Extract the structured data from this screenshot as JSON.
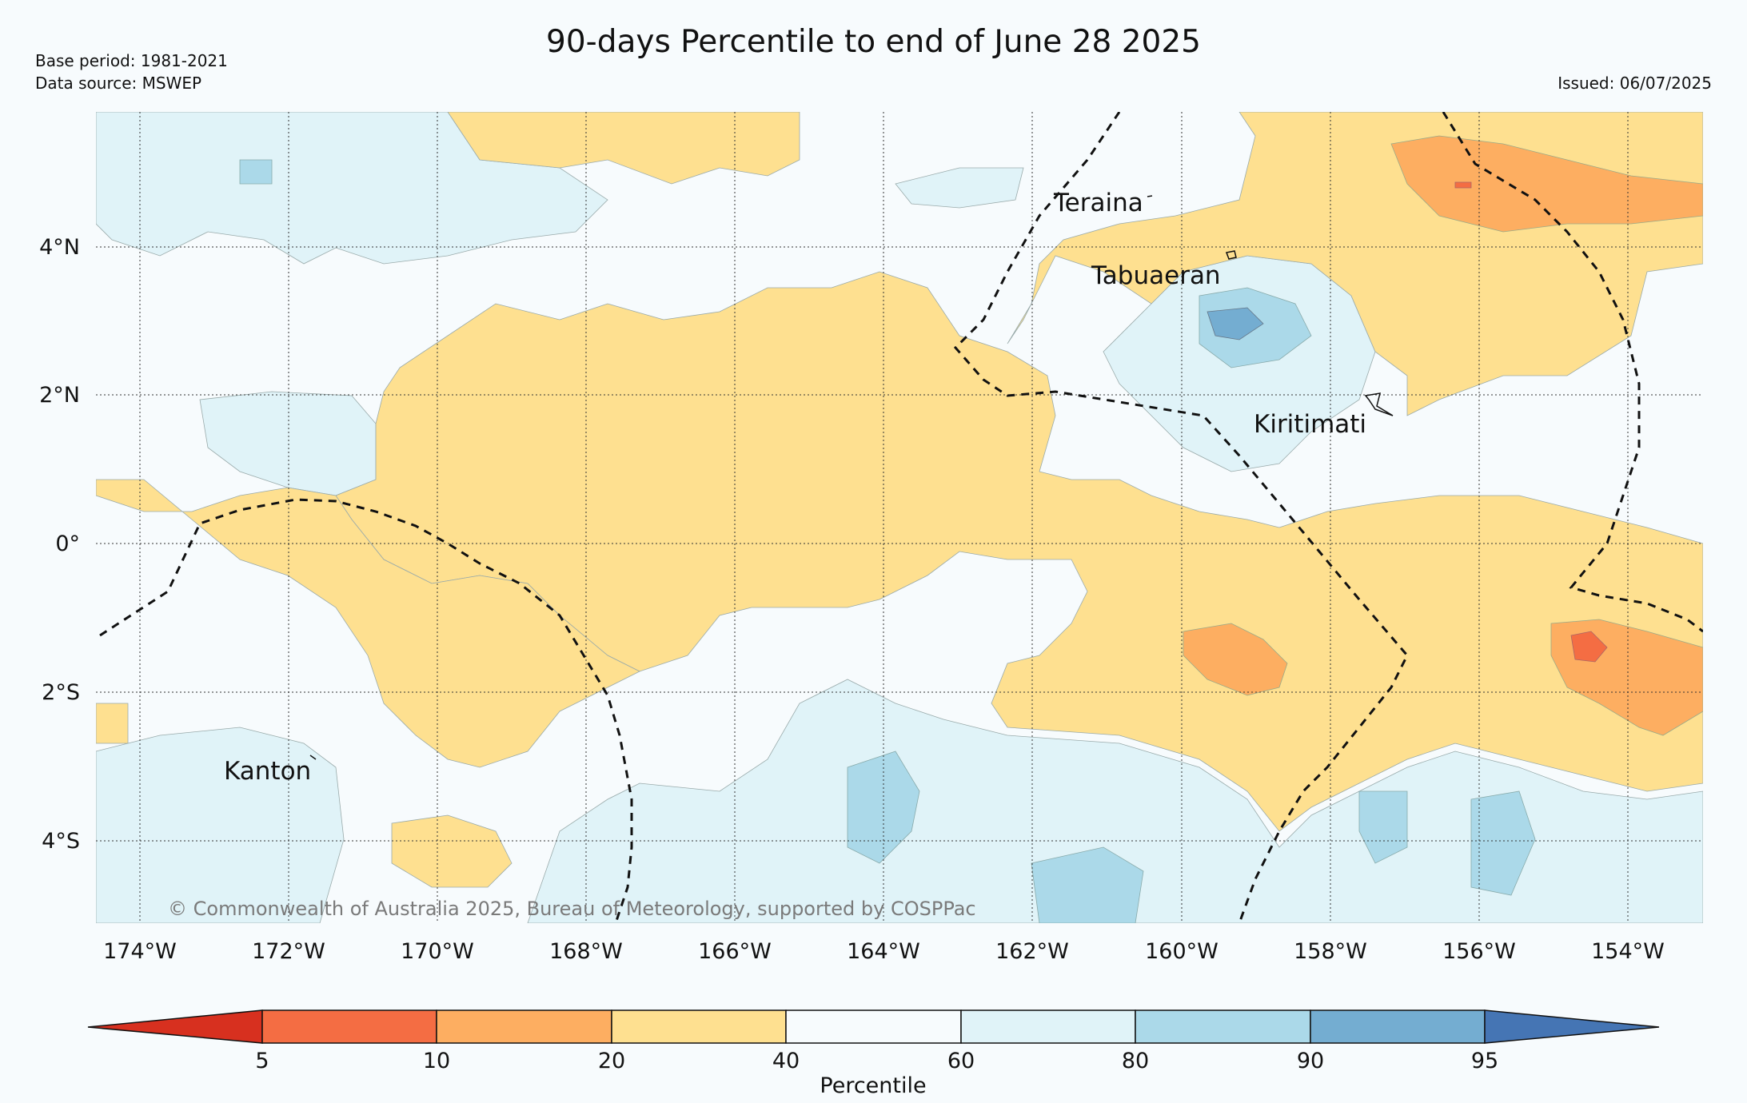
{
  "title": "90-days Percentile to end of June 28 2025",
  "base_period": "Base period: 1981-2021",
  "data_source": "Data source: MSWEP",
  "issued": "Issued: 06/07/2025",
  "copyright": "© Commonwealth of Australia 2025, Bureau of Meteorology, supported by COSPPac",
  "lat_ticks": [
    "4°N",
    "2°N",
    "0°",
    "2°S",
    "4°S"
  ],
  "lon_ticks": [
    "174°W",
    "172°W",
    "170°W",
    "168°W",
    "166°W",
    "164°W",
    "162°W",
    "160°W",
    "158°W",
    "156°W",
    "154°W"
  ],
  "places": [
    "Teraina",
    "Tabuaeran",
    "Kiritimati",
    "Kanton"
  ],
  "colorbar": {
    "label": "Percentile",
    "ticks": [
      "5",
      "10",
      "20",
      "40",
      "60",
      "80",
      "90",
      "95"
    ],
    "colors": [
      "#d7301f",
      "#f46d43",
      "#fdae61",
      "#fee090",
      "#f7fbfd",
      "#e0f3f8",
      "#abd9e9",
      "#74add1",
      "#4575b4"
    ]
  }
}
